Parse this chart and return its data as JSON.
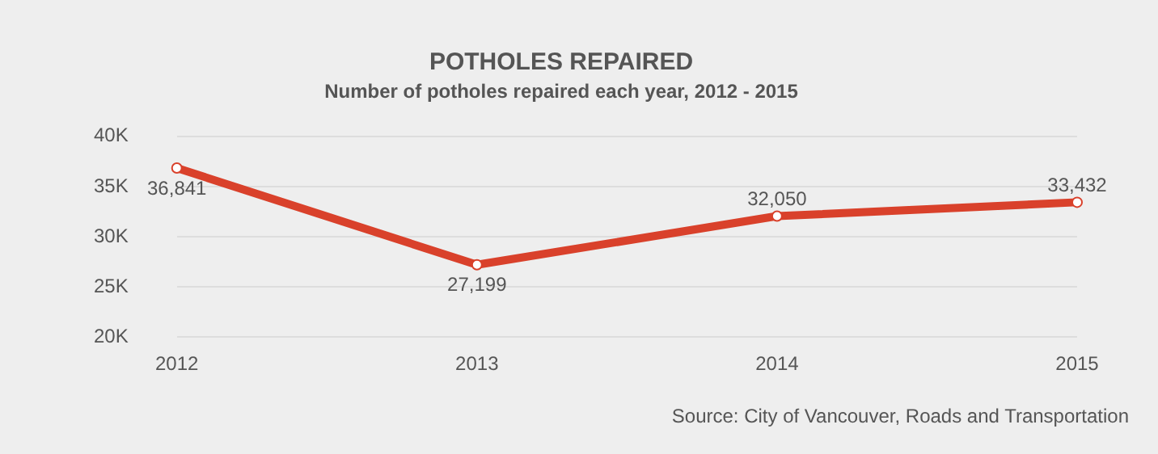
{
  "chart_data": {
    "type": "line",
    "title": "POTHOLES REPAIRED",
    "subtitle": "Number of potholes repaired each year, 2012 - 2015",
    "categories": [
      "2012",
      "2013",
      "2014",
      "2015"
    ],
    "series": [
      {
        "color": "#d9412b",
        "values": [
          36841,
          27199,
          32050,
          33432
        ],
        "value_labels": [
          "36,841",
          "27,199",
          "32,050",
          "33,432"
        ]
      }
    ],
    "ylim": [
      20000,
      40000
    ],
    "yticks": [
      {
        "value": 20000,
        "label": "20K"
      },
      {
        "value": 25000,
        "label": "25K"
      },
      {
        "value": 30000,
        "label": "30K"
      },
      {
        "value": 35000,
        "label": "35K"
      },
      {
        "value": 40000,
        "label": "40K"
      }
    ],
    "grid": "y",
    "legend": false,
    "marker": "circle",
    "line_style": "solid",
    "annotations": [
      "Source: City of Vancouver, Roads and Transportation"
    ]
  }
}
